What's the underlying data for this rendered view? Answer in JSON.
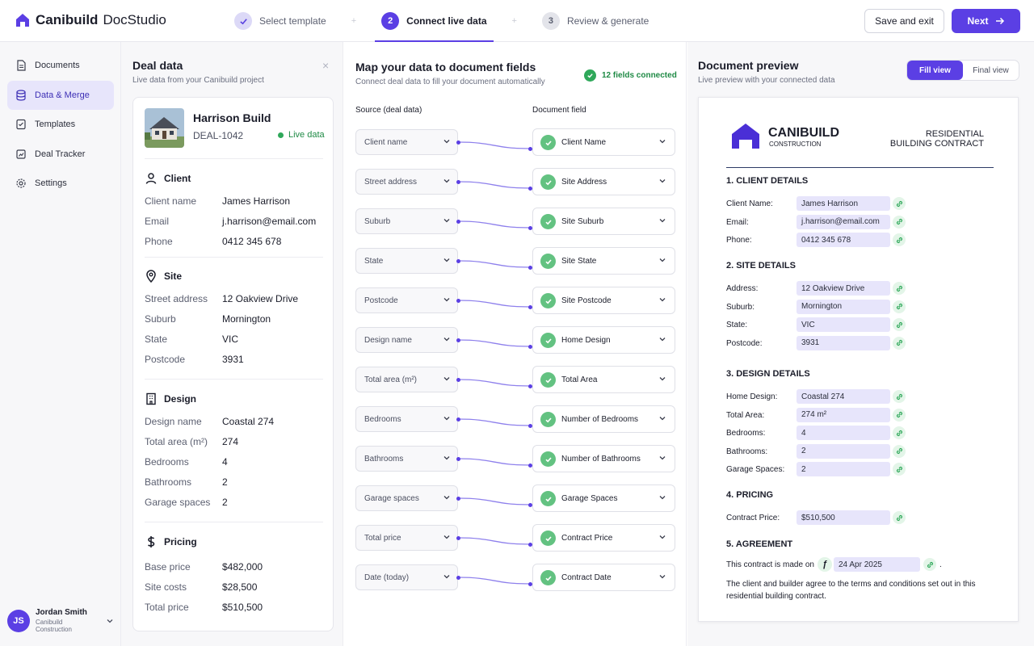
{
  "app": {
    "brand": "Canibuild",
    "product": "DocStudio"
  },
  "steps": [
    {
      "num": "✓",
      "label": "Select template",
      "state": "done"
    },
    {
      "num": "2",
      "label": "Connect live data",
      "state": "active"
    },
    {
      "num": "3",
      "label": "Review & generate",
      "state": "todo"
    }
  ],
  "step_separator": "+",
  "actions": {
    "save": "Save and exit",
    "next": "Next"
  },
  "sidebar": {
    "items": [
      {
        "label": "Documents",
        "icon": "document-icon"
      },
      {
        "label": "Data & Merge",
        "icon": "database-icon",
        "active": true
      },
      {
        "label": "Templates",
        "icon": "template-icon"
      },
      {
        "label": "Deal Tracker",
        "icon": "tracker-icon"
      },
      {
        "label": "Settings",
        "icon": "gear-icon"
      }
    ],
    "user": {
      "initials": "JS",
      "name": "Jordan Smith",
      "company": "Canibuild Construction"
    }
  },
  "deal": {
    "title": "Deal data",
    "subtitle": "Live data from your Canibuild project",
    "close": "×",
    "name": "Harrison Build",
    "id": "DEAL-1042",
    "live": "Live data",
    "sections": {
      "client": {
        "title": "Client",
        "rows": [
          {
            "k": "Client name",
            "v": "James Harrison"
          },
          {
            "k": "Email",
            "v": "j.harrison@email.com"
          },
          {
            "k": "Phone",
            "v": "0412 345 678"
          }
        ]
      },
      "site": {
        "title": "Site",
        "rows": [
          {
            "k": "Street address",
            "v": "12 Oakview Drive"
          },
          {
            "k": "Suburb",
            "v": "Mornington"
          },
          {
            "k": "State",
            "v": "VIC"
          },
          {
            "k": "Postcode",
            "v": "3931"
          }
        ]
      },
      "design": {
        "title": "Design",
        "rows": [
          {
            "k": "Design name",
            "v": "Coastal 274"
          },
          {
            "k": "Total area (m²)",
            "v": "274"
          },
          {
            "k": "Bedrooms",
            "v": "4"
          },
          {
            "k": "Bathrooms",
            "v": "2"
          },
          {
            "k": "Garage spaces",
            "v": "2"
          }
        ]
      },
      "pricing": {
        "title": "Pricing",
        "rows": [
          {
            "k": "Base price",
            "v": "$482,000"
          },
          {
            "k": "Site costs",
            "v": "$28,500"
          },
          {
            "k": "Total price",
            "v": "$510,500"
          }
        ]
      }
    }
  },
  "mapping": {
    "title": "Map your data to document fields",
    "subtitle": "Connect deal data to fill your document automatically",
    "connected": "12 fields connected",
    "col_source": "Source (deal data)",
    "col_field": "Document field",
    "sources": [
      "Client name",
      "Street address",
      "Suburb",
      "State",
      "Postcode",
      "Design name",
      "Total area (m²)",
      "Bedrooms",
      "Bathrooms",
      "Garage spaces",
      "Total price",
      "Date (today)"
    ],
    "fields": [
      "Client Name",
      "Site Address",
      "Site Suburb",
      "Site State",
      "Site Postcode",
      "Home Design",
      "Total Area",
      "Number of Bedrooms",
      "Number of Bathrooms",
      "Garage Spaces",
      "Contract Price",
      "Contract Date"
    ]
  },
  "preview": {
    "title": "Document preview",
    "subtitle": "Live preview with your connected data",
    "toggle": {
      "fill": "Fill view",
      "final": "Final view"
    },
    "doc": {
      "company": "CANIBUILD",
      "company_sub": "CONSTRUCTION",
      "doc_title_1": "RESIDENTIAL",
      "doc_title_2": "BUILDING CONTRACT",
      "sections": [
        {
          "title": "1. CLIENT DETAILS",
          "rows": [
            {
              "k": "Client Name:",
              "v": "James Harrison"
            },
            {
              "k": "Email:",
              "v": "j.harrison@email.com"
            },
            {
              "k": "Phone:",
              "v": "0412 345 678"
            }
          ]
        },
        {
          "title": "2. SITE DETAILS",
          "rows": [
            {
              "k": "Address:",
              "v": "12 Oakview Drive"
            },
            {
              "k": "Suburb:",
              "v": "Mornington"
            },
            {
              "k": "State:",
              "v": "VIC"
            },
            {
              "k": "Postcode:",
              "v": "3931"
            }
          ]
        },
        {
          "title": "3. DESIGN DETAILS",
          "rows": [
            {
              "k": "Home Design:",
              "v": "Coastal 274"
            },
            {
              "k": "Total Area:",
              "v": "274 m²"
            },
            {
              "k": "Bedrooms:",
              "v": "4"
            },
            {
              "k": "Bathrooms:",
              "v": "2"
            },
            {
              "k": "Garage Spaces:",
              "v": "2"
            }
          ]
        },
        {
          "title": "4. PRICING",
          "rows": [
            {
              "k": "Contract Price:",
              "v": "$510,500"
            }
          ]
        }
      ],
      "agreement_title": "5. AGREEMENT",
      "agreement_prefix": "This contract is made on",
      "agreement_fx": "ƒ",
      "agreement_date": "24 Apr 2025",
      "agreement_suffix": ".",
      "agreement_text_1": "The client and builder agree to the terms and conditions set out in this",
      "agreement_text_2": "residential building contract."
    }
  },
  "colors": {
    "accent": "#5b3fe4",
    "accent_soft": "#e7e5fb",
    "success": "#63c281",
    "success_text": "#1f8a45"
  }
}
